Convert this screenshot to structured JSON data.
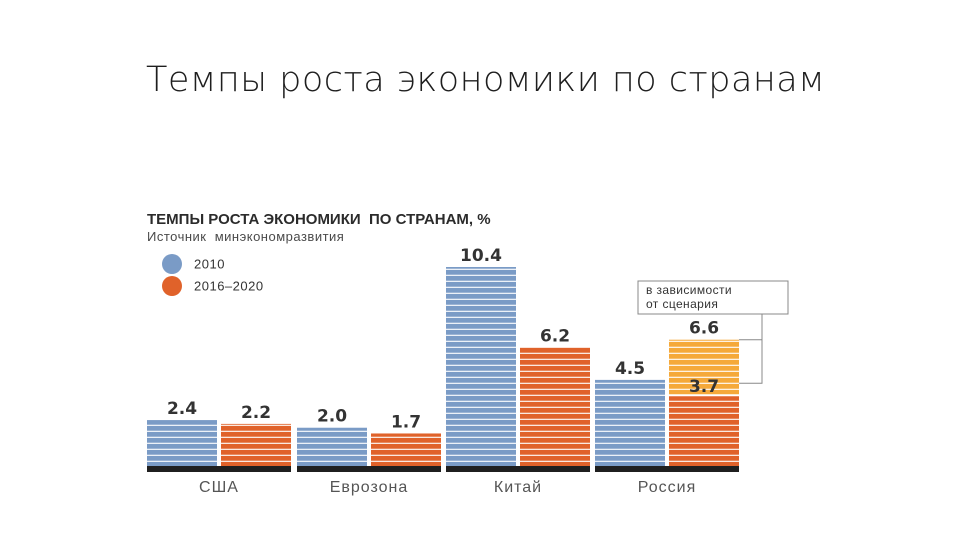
{
  "slide": {
    "title": "Темпы роста экономики по странам"
  },
  "chart_data": {
    "type": "bar",
    "title": "ТЕМПЫ РОСТА ЭКОНОМИКИ  ПО СТРАНАМ, %",
    "subtitle": "Источник  минэкономразвития",
    "categories": [
      "США",
      "Еврозона",
      "Китай",
      "Россия"
    ],
    "series": [
      {
        "name": "2010",
        "color": "#7a9bc6",
        "values": [
          2.4,
          2.0,
          10.4,
          4.5
        ]
      },
      {
        "name": "2016–2020",
        "color": "#e0622a",
        "values": [
          2.2,
          1.7,
          6.2,
          6.6
        ]
      }
    ],
    "scenario": {
      "category": "Россия",
      "low": 3.7,
      "high": 6.6,
      "high_color": "#f5a93a",
      "low_color": "#e0622a",
      "labels": [
        "3.7",
        "6.6"
      ],
      "note_lines": [
        "в зависимости",
        "от сценария"
      ]
    },
    "value_labels": {
      "2010": [
        "2.4",
        "2.0",
        "10.4",
        "4.5"
      ],
      "2016–2020": [
        "2.2",
        "1.7",
        "6.2",
        "6.6"
      ]
    },
    "legend_position": "top-left",
    "ylim": [
      0,
      10.4
    ],
    "grid": false,
    "xlabel": "",
    "ylabel": ""
  }
}
